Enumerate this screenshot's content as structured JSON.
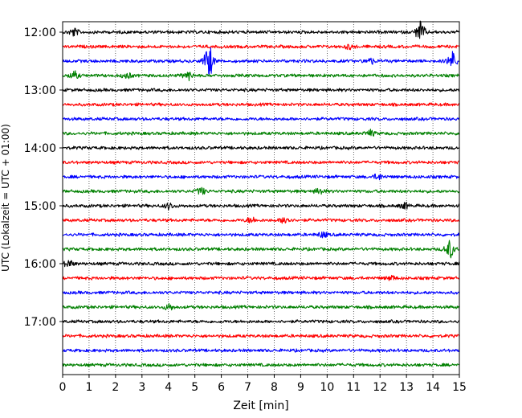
{
  "chart_data": {
    "type": "line",
    "title": "",
    "xlabel": "Zeit  [min]",
    "ylabel": "UTC (Lokalzeit = UTC + 01:00)",
    "xlim": [
      0,
      15
    ],
    "x_ticks": [
      "0",
      "1",
      "2",
      "3",
      "4",
      "5",
      "6",
      "7",
      "8",
      "9",
      "10",
      "11",
      "12",
      "13",
      "14",
      "15"
    ],
    "y_ticks": [
      {
        "label": "12:00",
        "trace": 0
      },
      {
        "label": "13:00",
        "trace": 4
      },
      {
        "label": "14:00",
        "trace": 8
      },
      {
        "label": "15:00",
        "trace": 12
      },
      {
        "label": "16:00",
        "trace": 16
      },
      {
        "label": "17:00",
        "trace": 20
      }
    ],
    "vertical_grid": true,
    "trace_colors": [
      "#000000",
      "#ff0000",
      "#0000ff",
      "#008000"
    ],
    "traces": [
      {
        "start": "12:00",
        "events": [
          [
            0.4,
            5
          ],
          [
            13.5,
            14
          ]
        ]
      },
      {
        "start": "12:15",
        "events": [
          [
            10.8,
            3
          ]
        ]
      },
      {
        "start": "12:30",
        "events": [
          [
            5.5,
            22
          ],
          [
            14.7,
            12
          ],
          [
            11.6,
            4
          ]
        ]
      },
      {
        "start": "12:45",
        "events": [
          [
            0.4,
            5
          ],
          [
            2.4,
            4
          ],
          [
            4.7,
            6
          ]
        ]
      },
      {
        "start": "13:00",
        "events": []
      },
      {
        "start": "13:15",
        "events": []
      },
      {
        "start": "13:30",
        "events": []
      },
      {
        "start": "13:45",
        "events": [
          [
            11.6,
            4
          ]
        ]
      },
      {
        "start": "14:00",
        "events": []
      },
      {
        "start": "14:15",
        "events": []
      },
      {
        "start": "14:30",
        "events": [
          [
            11.9,
            4
          ]
        ]
      },
      {
        "start": "14:45",
        "events": [
          [
            5.2,
            5
          ],
          [
            9.7,
            4
          ]
        ]
      },
      {
        "start": "15:00",
        "events": [
          [
            4.0,
            4
          ],
          [
            12.9,
            4
          ]
        ]
      },
      {
        "start": "15:15",
        "events": [
          [
            7.1,
            4
          ],
          [
            8.4,
            6
          ]
        ]
      },
      {
        "start": "15:30",
        "events": [
          [
            9.8,
            4
          ]
        ]
      },
      {
        "start": "15:45",
        "events": [
          [
            14.6,
            12
          ]
        ]
      },
      {
        "start": "16:00",
        "events": [
          [
            0.2,
            5
          ]
        ]
      },
      {
        "start": "16:15",
        "events": [
          [
            12.4,
            3
          ]
        ]
      },
      {
        "start": "16:30",
        "events": []
      },
      {
        "start": "16:45",
        "events": [
          [
            4.0,
            4
          ]
        ]
      },
      {
        "start": "17:00",
        "events": []
      },
      {
        "start": "17:15",
        "events": []
      },
      {
        "start": "17:30",
        "events": []
      },
      {
        "start": "17:45",
        "events": []
      }
    ]
  }
}
